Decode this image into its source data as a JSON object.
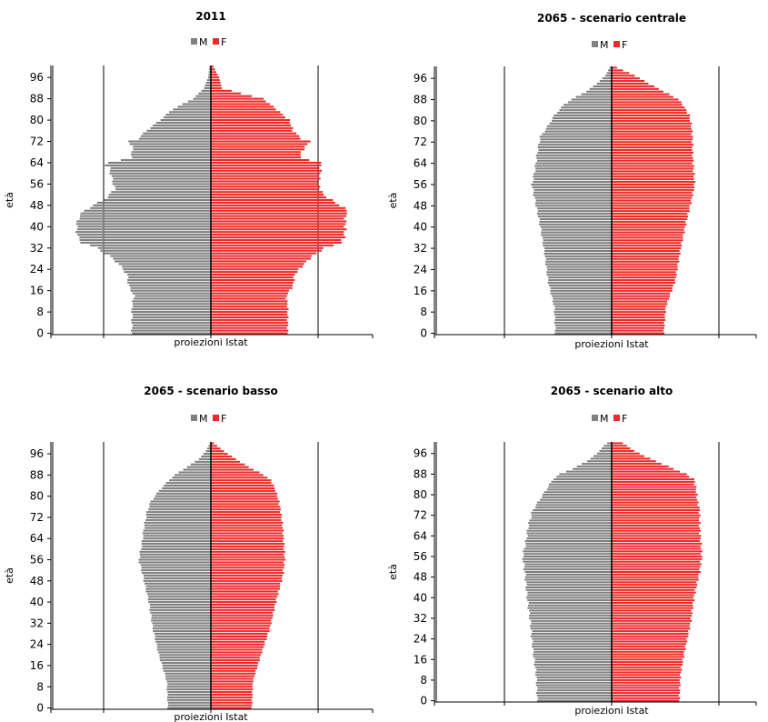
{
  "chart_data": [
    {
      "type": "bar",
      "title": "2011",
      "ylabel": "età",
      "xlabel": "proiezioni Istat",
      "y_ticks": [
        "0",
        "8",
        "16",
        "24",
        "32",
        "40",
        "48",
        "56",
        "64",
        "72",
        "80",
        "88",
        "96"
      ],
      "age_range": [
        0,
        100
      ],
      "x_units": "share of population (%)",
      "xlim": [
        -0.9,
        0.9
      ],
      "grid": true,
      "legend_position": "top",
      "legend": [
        "M",
        "F"
      ],
      "series": [
        {
          "name": "M",
          "color": "#808080",
          "profile": [
            [
              0,
              0.575
            ],
            [
              10,
              0.575
            ],
            [
              14,
              0.56
            ],
            [
              18,
              0.6
            ],
            [
              22,
              0.61
            ],
            [
              26,
              0.67
            ],
            [
              29,
              0.74
            ],
            [
              32,
              0.83
            ],
            [
              34,
              0.94
            ],
            [
              36,
              0.97
            ],
            [
              40,
              0.98
            ],
            [
              44,
              0.96
            ],
            [
              46,
              0.92
            ],
            [
              48,
              0.86
            ],
            [
              50,
              0.78
            ],
            [
              54,
              0.7
            ],
            [
              58,
              0.72
            ],
            [
              62,
              0.74
            ],
            [
              63,
              0.77
            ],
            [
              64,
              0.74
            ],
            [
              66,
              0.58
            ],
            [
              70,
              0.57
            ],
            [
              72,
              0.6
            ],
            [
              73,
              0.53
            ],
            [
              76,
              0.47
            ],
            [
              80,
              0.37
            ],
            [
              84,
              0.28
            ],
            [
              88,
              0.13
            ],
            [
              92,
              0.05
            ],
            [
              96,
              0.02
            ],
            [
              100,
              0.01
            ]
          ]
        },
        {
          "name": "F",
          "color": "#ee2a2a",
          "profile": [
            [
              0,
              0.56
            ],
            [
              10,
              0.56
            ],
            [
              14,
              0.55
            ],
            [
              18,
              0.6
            ],
            [
              22,
              0.61
            ],
            [
              26,
              0.68
            ],
            [
              29,
              0.74
            ],
            [
              32,
              0.83
            ],
            [
              34,
              0.95
            ],
            [
              36,
              0.97
            ],
            [
              40,
              0.98
            ],
            [
              44,
              0.98
            ],
            [
              46,
              1.0
            ],
            [
              48,
              0.94
            ],
            [
              52,
              0.82
            ],
            [
              56,
              0.78
            ],
            [
              60,
              0.8
            ],
            [
              63,
              0.8
            ],
            [
              64,
              0.8
            ],
            [
              66,
              0.65
            ],
            [
              68,
              0.66
            ],
            [
              72,
              0.72
            ],
            [
              73,
              0.66
            ],
            [
              76,
              0.6
            ],
            [
              80,
              0.57
            ],
            [
              84,
              0.48
            ],
            [
              88,
              0.38
            ],
            [
              90,
              0.22
            ],
            [
              92,
              0.08
            ],
            [
              96,
              0.06
            ],
            [
              100,
              0.02
            ]
          ]
        }
      ]
    },
    {
      "type": "bar",
      "title": "2065 - scenario centrale",
      "ylabel": "età",
      "xlabel": "proiezioni Istat",
      "y_ticks": [
        "0",
        "8",
        "16",
        "24",
        "32",
        "40",
        "48",
        "56",
        "64",
        "72",
        "80",
        "88",
        "96"
      ],
      "age_range": [
        0,
        100
      ],
      "x_units": "share of population (%)",
      "xlim": [
        -0.9,
        0.9
      ],
      "grid": true,
      "legend_position": "top",
      "legend": [
        "M",
        "F"
      ],
      "series": [
        {
          "name": "M",
          "color": "#808080",
          "profile": [
            [
              0,
              0.53
            ],
            [
              10,
              0.54
            ],
            [
              20,
              0.6
            ],
            [
              30,
              0.63
            ],
            [
              40,
              0.67
            ],
            [
              50,
              0.72
            ],
            [
              56,
              0.75
            ],
            [
              62,
              0.72
            ],
            [
              68,
              0.7
            ],
            [
              74,
              0.67
            ],
            [
              78,
              0.6
            ],
            [
              82,
              0.54
            ],
            [
              86,
              0.45
            ],
            [
              88,
              0.38
            ],
            [
              91,
              0.24
            ],
            [
              94,
              0.14
            ],
            [
              97,
              0.06
            ],
            [
              100,
              0.02
            ]
          ]
        },
        {
          "name": "F",
          "color": "#ee2a2a",
          "profile": [
            [
              0,
              0.49
            ],
            [
              10,
              0.51
            ],
            [
              20,
              0.6
            ],
            [
              30,
              0.64
            ],
            [
              40,
              0.69
            ],
            [
              50,
              0.75
            ],
            [
              56,
              0.78
            ],
            [
              62,
              0.77
            ],
            [
              68,
              0.76
            ],
            [
              74,
              0.76
            ],
            [
              78,
              0.75
            ],
            [
              82,
              0.73
            ],
            [
              86,
              0.67
            ],
            [
              88,
              0.63
            ],
            [
              91,
              0.49
            ],
            [
              94,
              0.35
            ],
            [
              97,
              0.22
            ],
            [
              100,
              0.05
            ]
          ]
        }
      ]
    },
    {
      "type": "bar",
      "title": "2065 - scenario basso",
      "ylabel": "età",
      "xlabel": "proiezioni Istat",
      "y_ticks": [
        "0",
        "8",
        "16",
        "24",
        "32",
        "40",
        "48",
        "56",
        "64",
        "72",
        "80",
        "88",
        "96"
      ],
      "age_range": [
        0,
        100
      ],
      "x_units": "share of population (%)",
      "xlim": [
        -0.9,
        0.9
      ],
      "grid": true,
      "legend_position": "top",
      "legend": [
        "M",
        "F"
      ],
      "series": [
        {
          "name": "M",
          "color": "#808080",
          "profile": [
            [
              0,
              0.43
            ],
            [
              10,
              0.44
            ],
            [
              20,
              0.52
            ],
            [
              30,
              0.58
            ],
            [
              40,
              0.62
            ],
            [
              50,
              0.68
            ],
            [
              56,
              0.72
            ],
            [
              62,
              0.69
            ],
            [
              68,
              0.67
            ],
            [
              74,
              0.64
            ],
            [
              78,
              0.6
            ],
            [
              82,
              0.52
            ],
            [
              86,
              0.42
            ],
            [
              88,
              0.36
            ],
            [
              91,
              0.24
            ],
            [
              94,
              0.12
            ],
            [
              97,
              0.05
            ],
            [
              100,
              0.01
            ]
          ]
        },
        {
          "name": "F",
          "color": "#ee2a2a",
          "profile": [
            [
              0,
              0.41
            ],
            [
              10,
              0.42
            ],
            [
              20,
              0.5
            ],
            [
              30,
              0.59
            ],
            [
              40,
              0.65
            ],
            [
              50,
              0.72
            ],
            [
              56,
              0.74
            ],
            [
              62,
              0.73
            ],
            [
              68,
              0.72
            ],
            [
              74,
              0.7
            ],
            [
              78,
              0.68
            ],
            [
              82,
              0.65
            ],
            [
              86,
              0.6
            ],
            [
              88,
              0.53
            ],
            [
              91,
              0.38
            ],
            [
              94,
              0.25
            ],
            [
              97,
              0.13
            ],
            [
              100,
              0.03
            ]
          ]
        }
      ]
    },
    {
      "type": "bar",
      "title": "2065 - scenario alto",
      "ylabel": "età",
      "xlabel": "proiezioni Istat",
      "y_ticks": [
        "0",
        "8",
        "16",
        "24",
        "32",
        "40",
        "48",
        "56",
        "64",
        "72",
        "80",
        "88",
        "96"
      ],
      "age_range": [
        0,
        100
      ],
      "x_units": "share of population (%)",
      "xlim": [
        -0.9,
        0.9
      ],
      "grid": true,
      "legend_position": "top",
      "legend": [
        "M",
        "F"
      ],
      "series": [
        {
          "name": "M",
          "color": "#808080",
          "profile": [
            [
              0,
              0.66
            ],
            [
              10,
              0.67
            ],
            [
              20,
              0.7
            ],
            [
              30,
              0.72
            ],
            [
              40,
              0.75
            ],
            [
              50,
              0.77
            ],
            [
              56,
              0.79
            ],
            [
              62,
              0.76
            ],
            [
              68,
              0.74
            ],
            [
              74,
              0.7
            ],
            [
              78,
              0.64
            ],
            [
              82,
              0.58
            ],
            [
              86,
              0.52
            ],
            [
              88,
              0.46
            ],
            [
              90,
              0.35
            ],
            [
              93,
              0.22
            ],
            [
              96,
              0.13
            ],
            [
              99,
              0.07
            ],
            [
              100,
              0.04
            ]
          ]
        },
        {
          "name": "F",
          "color": "#ee2a2a",
          "profile": [
            [
              0,
              0.6
            ],
            [
              10,
              0.61
            ],
            [
              20,
              0.65
            ],
            [
              30,
              0.7
            ],
            [
              40,
              0.73
            ],
            [
              50,
              0.78
            ],
            [
              56,
              0.8
            ],
            [
              62,
              0.79
            ],
            [
              68,
              0.78
            ],
            [
              74,
              0.78
            ],
            [
              78,
              0.76
            ],
            [
              82,
              0.75
            ],
            [
              86,
              0.73
            ],
            [
              88,
              0.66
            ],
            [
              91,
              0.5
            ],
            [
              94,
              0.34
            ],
            [
              97,
              0.2
            ],
            [
              100,
              0.1
            ]
          ]
        }
      ]
    }
  ]
}
